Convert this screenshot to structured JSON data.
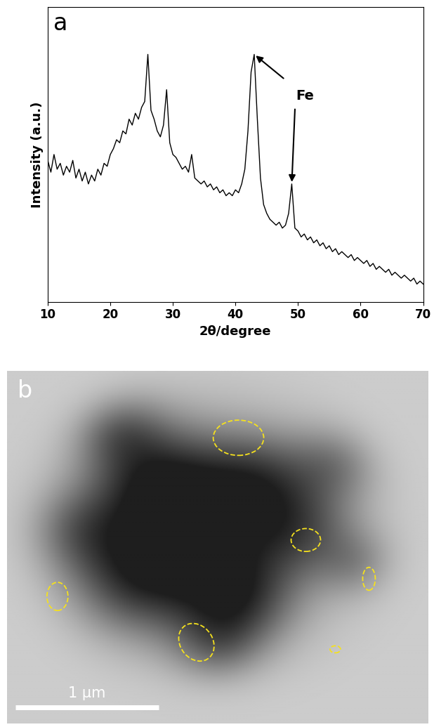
{
  "chart_data": [
    {
      "type": "line",
      "panel_label": "a",
      "x_label": "2θ/degree",
      "y_label": "Intensity (a.u.)",
      "x": [
        10,
        10.5,
        11,
        11.5,
        12,
        12.5,
        13,
        13.5,
        14,
        14.5,
        15,
        15.5,
        16,
        16.5,
        17,
        17.5,
        18,
        18.5,
        19,
        19.5,
        20,
        20.5,
        21,
        21.5,
        22,
        22.5,
        23,
        23.5,
        24,
        24.5,
        25,
        25.5,
        26,
        26.5,
        27,
        27.5,
        28,
        28.5,
        29,
        29.5,
        30,
        30.5,
        31,
        31.5,
        32,
        32.5,
        33,
        33.5,
        34,
        34.5,
        35,
        35.5,
        36,
        36.5,
        37,
        37.5,
        38,
        38.5,
        39,
        39.5,
        40,
        40.5,
        41,
        41.5,
        42,
        42.5,
        43,
        43.5,
        44,
        44.5,
        45,
        45.5,
        46,
        46.5,
        47,
        47.5,
        48,
        48.5,
        49,
        49.5,
        50,
        50.5,
        51,
        51.5,
        52,
        52.5,
        53,
        53.5,
        54,
        54.5,
        55,
        55.5,
        56,
        56.5,
        57,
        57.5,
        58,
        58.5,
        59,
        59.5,
        60,
        60.5,
        61,
        61.5,
        62,
        62.5,
        63,
        63.5,
        64,
        64.5,
        65,
        65.5,
        66,
        66.5,
        67,
        67.5,
        68,
        68.5,
        69,
        69.5,
        70
      ],
      "values": [
        48,
        44,
        50,
        45,
        47,
        43,
        46,
        44,
        48,
        42,
        45,
        41,
        44,
        40,
        43,
        41,
        45,
        43,
        47,
        46,
        50,
        52,
        55,
        54,
        58,
        57,
        62,
        60,
        64,
        62,
        66,
        68,
        84,
        65,
        62,
        58,
        56,
        60,
        72,
        54,
        50,
        49,
        47,
        45,
        46,
        44,
        50,
        42,
        41,
        40,
        41,
        39,
        40,
        38,
        39,
        37,
        38,
        36,
        37,
        36,
        38,
        37,
        40,
        45,
        58,
        78,
        84,
        62,
        42,
        33,
        30,
        28,
        27,
        26,
        27,
        25,
        26,
        30,
        40,
        25,
        24,
        22,
        23,
        21,
        22,
        20,
        21,
        19,
        20,
        18,
        19,
        17,
        18,
        16,
        17,
        16,
        15,
        16,
        14,
        15,
        14,
        13,
        14,
        12,
        13,
        11,
        12,
        11,
        10,
        11,
        9,
        10,
        9,
        8,
        9,
        8,
        7,
        8,
        6,
        7,
        6
      ],
      "color": "#000000",
      "xlim": [
        10,
        70
      ],
      "xticks": [
        10,
        20,
        30,
        40,
        50,
        60,
        70
      ],
      "ylim": [
        0,
        100
      ],
      "tick_labels": "x",
      "annotations": [
        {
          "text": "Fe",
          "points": [
            [
              43,
              84
            ],
            [
              49,
              40
            ]
          ]
        }
      ]
    },
    {
      "type": "image",
      "panel_label": "b",
      "scale_bar": {
        "label": "1 μm"
      }
    }
  ]
}
